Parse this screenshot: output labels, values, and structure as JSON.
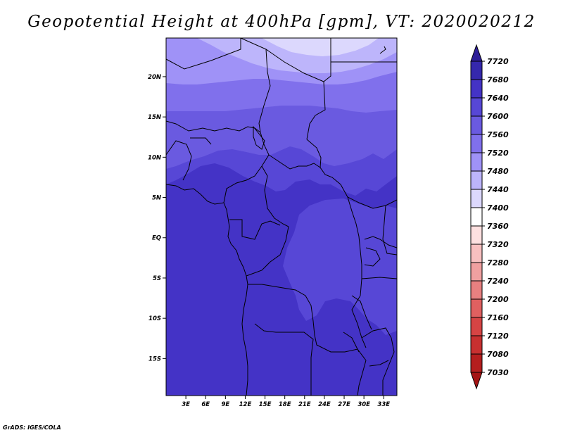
{
  "title": "Geopotential Height at 400hPa [gpm], VT: 2020020212",
  "footer": "GrADS: IGES/COLA",
  "map": {
    "lat_ticks": [
      {
        "label": "20N",
        "lat": 20
      },
      {
        "label": "15N",
        "lat": 15
      },
      {
        "label": "10N",
        "lat": 10
      },
      {
        "label": "5N",
        "lat": 5
      },
      {
        "label": "EQ",
        "lat": 0
      },
      {
        "label": "5S",
        "lat": -5
      },
      {
        "label": "10S",
        "lat": -10
      },
      {
        "label": "15S",
        "lat": -15
      }
    ],
    "lon_ticks": [
      {
        "label": "3E",
        "lon": 3
      },
      {
        "label": "6E",
        "lon": 6
      },
      {
        "label": "9E",
        "lon": 9
      },
      {
        "label": "12E",
        "lon": 12
      },
      {
        "label": "15E",
        "lon": 15
      },
      {
        "label": "18E",
        "lon": 18
      },
      {
        "label": "21E",
        "lon": 21
      },
      {
        "label": "24E",
        "lon": 24
      },
      {
        "label": "27E",
        "lon": 27
      },
      {
        "label": "30E",
        "lon": 30
      },
      {
        "label": "33E",
        "lon": 33
      }
    ],
    "colors": {
      "band_7640": "#4433c6",
      "band_7600": "#5747d6",
      "band_7560": "#6a5ae0",
      "band_7520": "#8070ec",
      "band_7480": "#9f92f7",
      "band_7440": "#bdb5fb",
      "band_7400": "#dcd8fd"
    }
  },
  "colorbar": {
    "labels": [
      "7720",
      "7680",
      "7640",
      "7600",
      "7560",
      "7520",
      "7480",
      "7440",
      "7400",
      "7360",
      "7320",
      "7280",
      "7240",
      "7200",
      "7160",
      "7120",
      "7080",
      "7030"
    ],
    "colors": [
      "#2e1e99",
      "#3528ad",
      "#4433c6",
      "#5747d6",
      "#6a5ae0",
      "#8070ec",
      "#9f92f7",
      "#bdb5fb",
      "#dcd8fd",
      "#ffffff",
      "#fde0e0",
      "#f8c0c0",
      "#f0a0a0",
      "#e88080",
      "#e06060",
      "#d64444",
      "#c83030",
      "#b51e1e",
      "#a41414"
    ]
  }
}
